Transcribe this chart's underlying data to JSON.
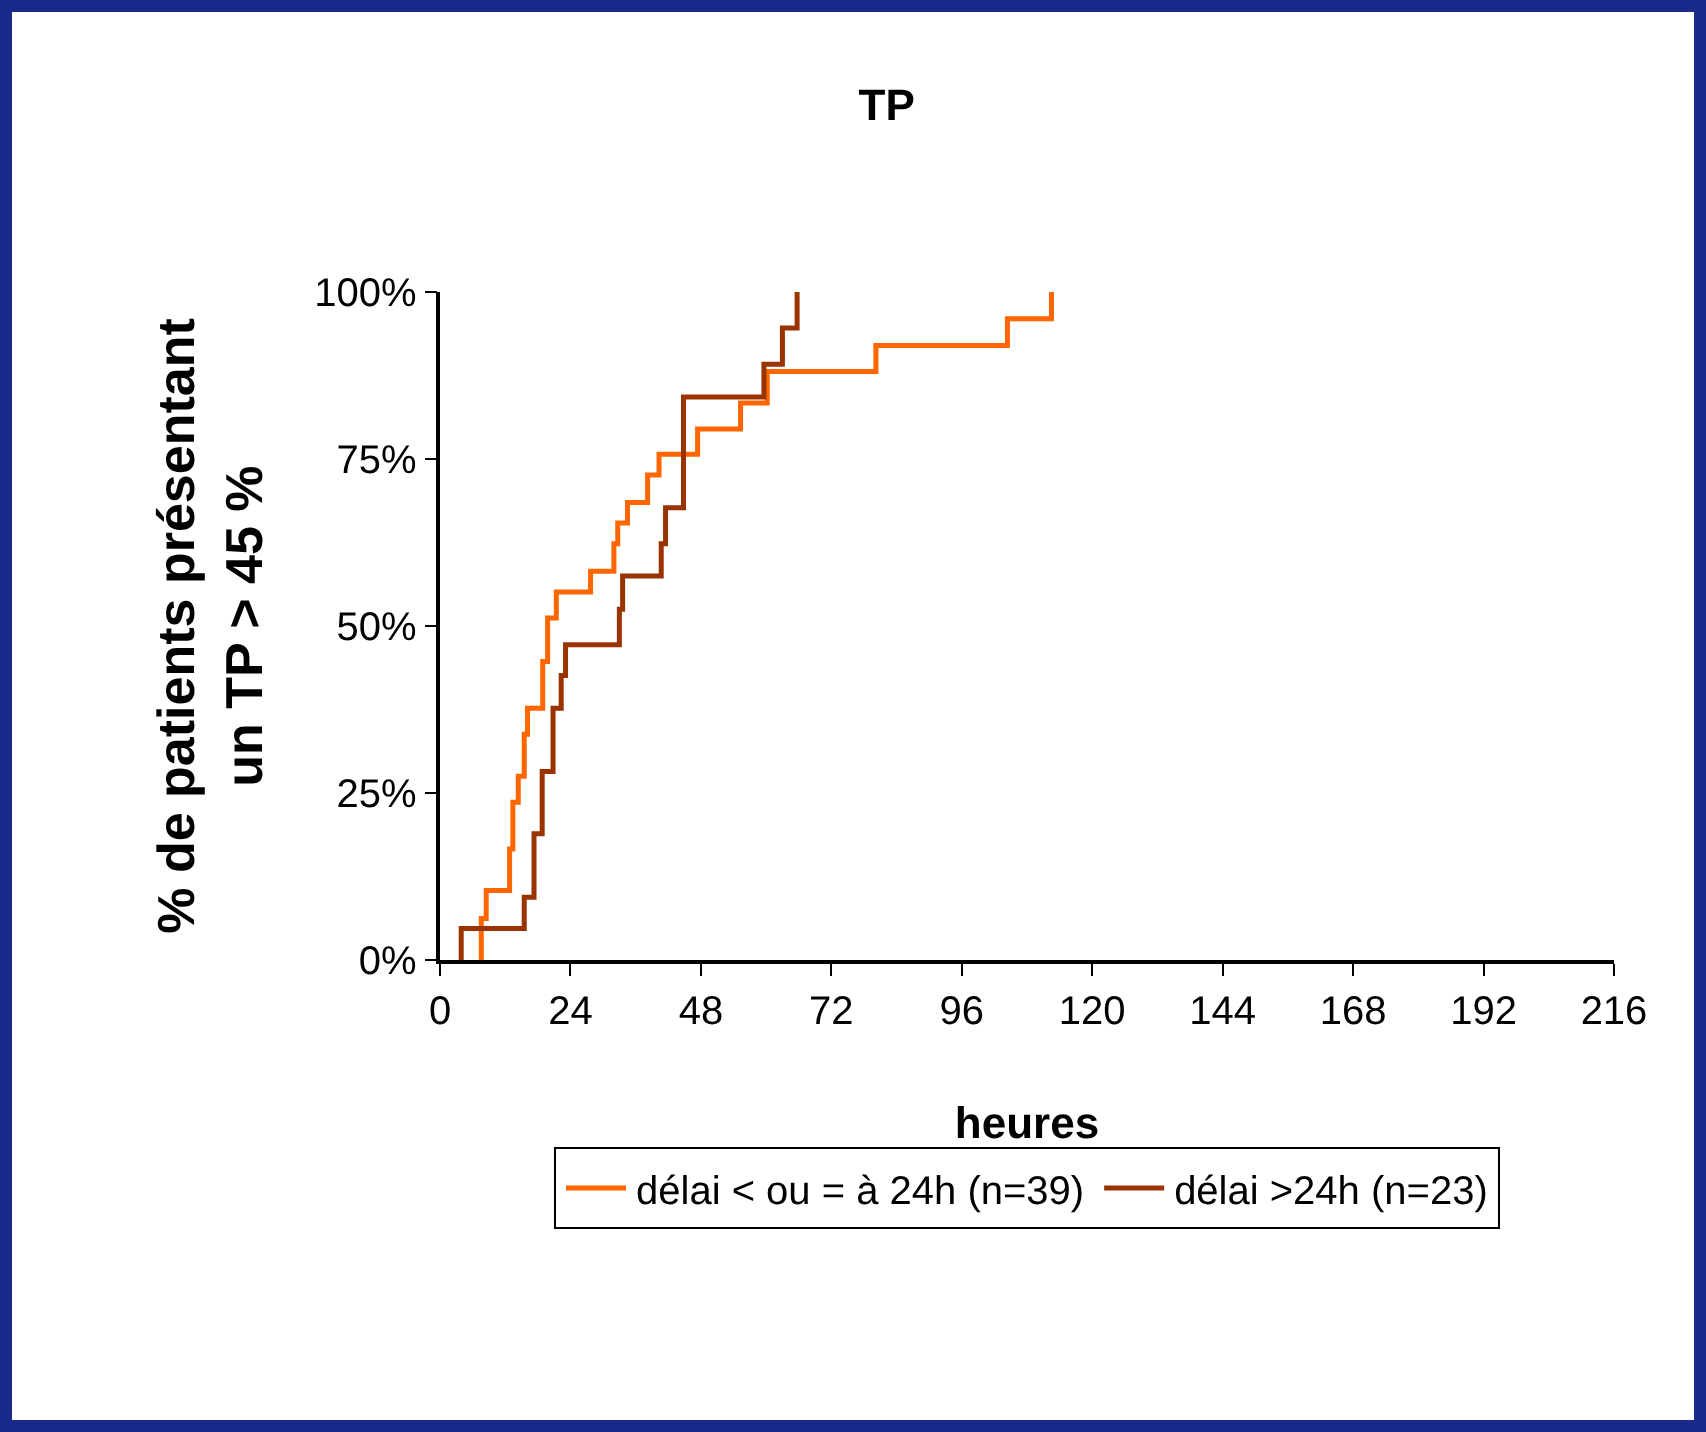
{
  "chart_data": {
    "type": "step",
    "title": "TP",
    "xlabel": "heures",
    "ylabel": "% de patients présentant\nun TP > 45 %",
    "xlim": [
      0,
      216
    ],
    "xticks": [
      0,
      24,
      48,
      72,
      96,
      120,
      144,
      168,
      192,
      216
    ],
    "ylim": [
      0,
      100
    ],
    "yticks": [
      {
        "value": 0,
        "label": "0%"
      },
      {
        "value": 25,
        "label": "25%"
      },
      {
        "value": 50,
        "label": "50%"
      },
      {
        "value": 75,
        "label": "75%"
      },
      {
        "value": 100,
        "label": "100%"
      }
    ],
    "grid": false,
    "legend": "bottom",
    "marker": "none",
    "line_style": "solid",
    "series": [
      {
        "name": "délai < ou = à 24h (n=39)",
        "color": "#ff6600",
        "x": [
          7.6,
          7.6,
          8.5,
          12.8,
          13.4,
          14.4,
          15.5,
          16.1,
          18.9,
          19.8,
          21.4,
          27.7,
          32,
          32.7,
          34.5,
          38.2,
          40.3,
          47.4,
          55.3,
          60.2,
          80.2,
          104.4,
          112.5
        ],
        "values": [
          0,
          6.2,
          10.4,
          16.6,
          23.6,
          27.5,
          33.8,
          37.7,
          44.7,
          51.2,
          55.1,
          58.2,
          62.3,
          65.4,
          68.5,
          72.6,
          75.7,
          79.5,
          83.4,
          88.1,
          92,
          96,
          100
        ]
      },
      {
        "name": "délai >24h (n=23)",
        "color": "#993300",
        "x": [
          3.9,
          3.9,
          15.5,
          17.3,
          18.8,
          20.8,
          22.3,
          23.1,
          33,
          33.6,
          40.7,
          41.5,
          44.8,
          59.6,
          63,
          65.7
        ],
        "values": [
          0,
          4.7,
          9.4,
          18.9,
          28.2,
          37.7,
          42.6,
          47.2,
          52.5,
          57.5,
          62.3,
          67.7,
          84.3,
          89.2,
          94.6,
          100
        ]
      }
    ]
  }
}
